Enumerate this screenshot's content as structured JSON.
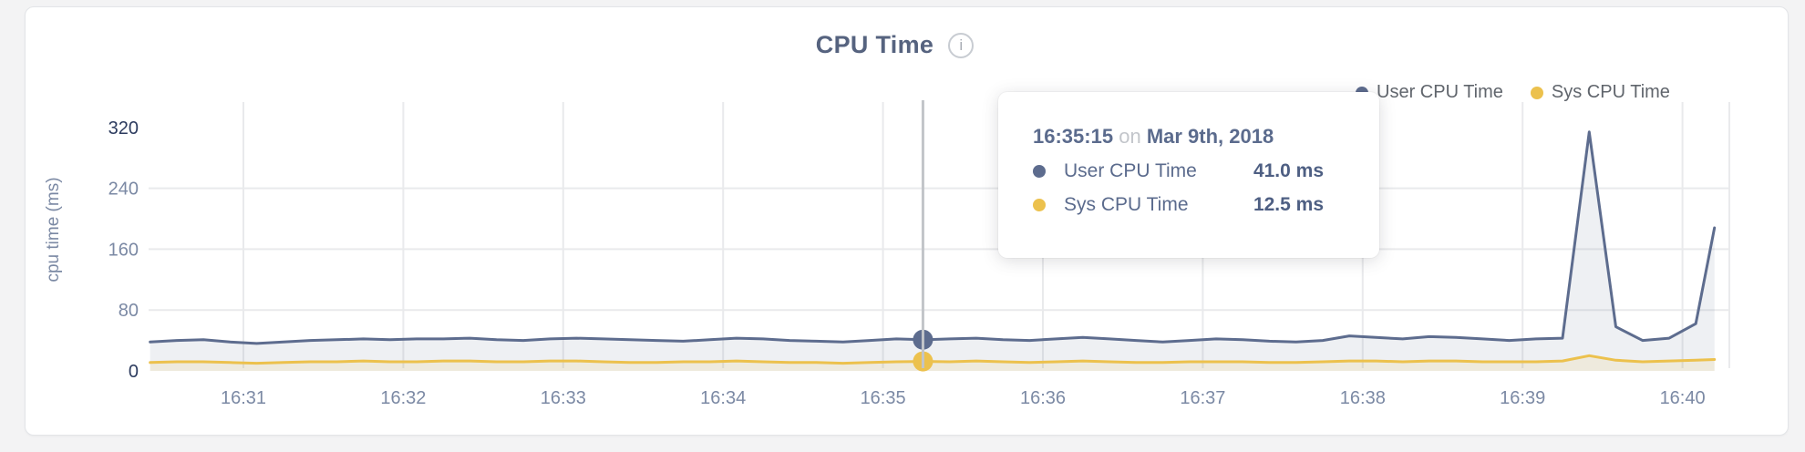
{
  "card": {
    "title": "CPU Time",
    "info_icon_glyph": "i"
  },
  "legend": {
    "items": [
      {
        "label": "User CPU Time",
        "color": "#5d6c8e"
      },
      {
        "label": "Sys CPU Time",
        "color": "#ecc14d"
      }
    ]
  },
  "tooltip": {
    "time": "16:35:15",
    "connector": "on",
    "date": "Mar 9th, 2018",
    "rows": [
      {
        "label": "User CPU Time",
        "value": "41.0 ms",
        "color": "#5d6c8e"
      },
      {
        "label": "Sys CPU Time",
        "value": "12.5 ms",
        "color": "#ecc14d"
      }
    ]
  },
  "chart_data": {
    "type": "area",
    "title": "CPU Time",
    "xlabel": "",
    "ylabel": "cpu time (ms)",
    "ylim": [
      0,
      320
    ],
    "y_ticks": [
      0,
      80,
      160,
      240,
      320
    ],
    "grid": true,
    "legend_position": "top-right",
    "x_ticks": {
      "labels": [
        "16:31",
        "16:32",
        "16:33",
        "16:34",
        "16:35",
        "16:36",
        "16:37",
        "16:38",
        "16:39",
        "16:40"
      ],
      "seconds": [
        60,
        120,
        180,
        240,
        300,
        360,
        420,
        480,
        540,
        600
      ]
    },
    "t_unit": "seconds after 16:30:00",
    "t": [
      25,
      35,
      45,
      55,
      65,
      75,
      85,
      95,
      105,
      115,
      125,
      135,
      145,
      155,
      165,
      175,
      185,
      195,
      205,
      215,
      225,
      235,
      245,
      255,
      265,
      275,
      285,
      295,
      305,
      315,
      325,
      335,
      345,
      355,
      365,
      375,
      385,
      395,
      405,
      415,
      425,
      435,
      445,
      455,
      465,
      475,
      485,
      495,
      505,
      515,
      525,
      535,
      545,
      555,
      565,
      575,
      585,
      595,
      605,
      612
    ],
    "series": [
      {
        "name": "User CPU Time",
        "color": "#5d6c8e",
        "fill_opacity": 0.1,
        "values": [
          38,
          40,
          41,
          38,
          36,
          38,
          40,
          41,
          42,
          41,
          42,
          42,
          43,
          41,
          40,
          42,
          43,
          42,
          41,
          40,
          39,
          41,
          43,
          42,
          40,
          39,
          38,
          40,
          42,
          41,
          42,
          43,
          41,
          40,
          42,
          44,
          42,
          40,
          38,
          40,
          42,
          41,
          39,
          38,
          40,
          46,
          44,
          42,
          45,
          44,
          42,
          40,
          42,
          43,
          314,
          58,
          40,
          43,
          62,
          188
        ]
      },
      {
        "name": "Sys CPU Time",
        "color": "#ecc14d",
        "fill_opacity": 0.13,
        "values": [
          11,
          12,
          12,
          11,
          10,
          11,
          12,
          12,
          13,
          12,
          12,
          13,
          13,
          12,
          12,
          13,
          13,
          12,
          11,
          11,
          12,
          12,
          13,
          12,
          11,
          11,
          10,
          11,
          12,
          12.5,
          12,
          13,
          12,
          11,
          12,
          13,
          12,
          11,
          11,
          12,
          12,
          12,
          11,
          11,
          12,
          13,
          13,
          12,
          13,
          13,
          12,
          12,
          12,
          13,
          20,
          14,
          12,
          13,
          14,
          15
        ]
      }
    ],
    "hover": {
      "time": "16:35:15",
      "t": 315,
      "values": [
        41.0,
        12.5
      ],
      "line_color": "#c2c5c9"
    },
    "grid_color": "#e9eaec",
    "tick_color": "#7b89a4",
    "tick_color_minmax": "#2c3b5e"
  }
}
